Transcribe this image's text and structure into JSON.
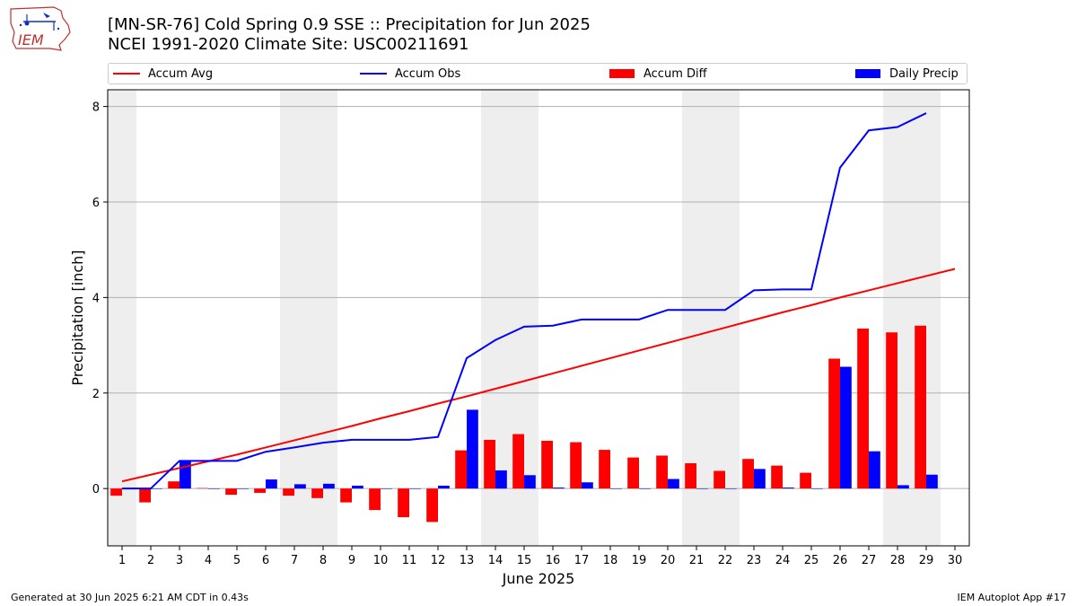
{
  "title_line1": "[MN-SR-76] Cold Spring 0.9 SSE :: Precipitation for Jun 2025",
  "title_line2": "NCEI 1991-2020 Climate Site: USC00211691",
  "logo_text": "IEM",
  "footer_left": "Generated at 30 Jun 2025 6:21 AM CDT in 0.43s",
  "footer_right": "IEM Autoplot App #17",
  "colors": {
    "avg": "#ff0000",
    "obs": "#0000ff",
    "diff": "#ff0000",
    "daily": "#0000ff",
    "weekend_band": "#eeeeee",
    "grid": "#b0b0b0"
  },
  "legend": [
    {
      "label": "Accum Avg",
      "kind": "line",
      "color": "#ff0000"
    },
    {
      "label": "Accum Obs",
      "kind": "line",
      "color": "#0000ff"
    },
    {
      "label": "Accum Diff",
      "kind": "bar",
      "color": "#ff0000"
    },
    {
      "label": "Daily Precip",
      "kind": "bar",
      "color": "#0000ff"
    }
  ],
  "chart_data": {
    "type": "bar",
    "xlabel": "June 2025",
    "ylabel": "Precipitation [inch]",
    "ylim": [
      -1.2,
      8.35
    ],
    "yticks": [
      0,
      2,
      4,
      6,
      8
    ],
    "x": [
      1,
      2,
      3,
      4,
      5,
      6,
      7,
      8,
      9,
      10,
      11,
      12,
      13,
      14,
      15,
      16,
      17,
      18,
      19,
      20,
      21,
      22,
      23,
      24,
      25,
      26,
      27,
      28,
      29,
      30
    ],
    "weekend_bands": [
      [
        1,
        1
      ],
      [
        7,
        8
      ],
      [
        14,
        15
      ],
      [
        21,
        22
      ],
      [
        28,
        29
      ]
    ],
    "grid": true,
    "series": [
      {
        "name": "Accum Avg",
        "kind": "line",
        "x": [
          1,
          2,
          3,
          4,
          5,
          6,
          7,
          8,
          9,
          10,
          11,
          12,
          13,
          14,
          15,
          16,
          17,
          18,
          19,
          20,
          21,
          22,
          23,
          24,
          25,
          26,
          27,
          28,
          29,
          30
        ],
        "values": [
          0.15,
          0.29,
          0.43,
          0.57,
          0.71,
          0.86,
          1.01,
          1.16,
          1.31,
          1.47,
          1.62,
          1.78,
          1.93,
          2.09,
          2.25,
          2.41,
          2.57,
          2.73,
          2.89,
          3.05,
          3.21,
          3.37,
          3.53,
          3.69,
          3.84,
          4.0,
          4.15,
          4.3,
          4.45,
          4.6
        ]
      },
      {
        "name": "Accum Obs",
        "kind": "line",
        "x": [
          1,
          2,
          3,
          4,
          5,
          6,
          7,
          8,
          9,
          10,
          11,
          12,
          13,
          14,
          15,
          16,
          17,
          18,
          19,
          20,
          21,
          22,
          23,
          24,
          25,
          26,
          27,
          28,
          29
        ],
        "values": [
          0.0,
          0.0,
          0.58,
          0.58,
          0.58,
          0.77,
          0.86,
          0.96,
          1.02,
          1.02,
          1.02,
          1.08,
          2.73,
          3.11,
          3.39,
          3.41,
          3.54,
          3.54,
          3.54,
          3.74,
          3.74,
          3.74,
          4.15,
          4.17,
          4.17,
          6.72,
          7.5,
          7.57,
          7.86
        ]
      },
      {
        "name": "Accum Diff",
        "kind": "bar",
        "x": [
          1,
          2,
          3,
          4,
          5,
          6,
          7,
          8,
          9,
          10,
          11,
          12,
          13,
          14,
          15,
          16,
          17,
          18,
          19,
          20,
          21,
          22,
          23,
          24,
          25,
          26,
          27,
          28,
          29
        ],
        "values": [
          -0.15,
          -0.29,
          0.15,
          0.01,
          -0.13,
          -0.09,
          -0.15,
          -0.2,
          -0.29,
          -0.45,
          -0.6,
          -0.7,
          0.8,
          1.02,
          1.14,
          1.0,
          0.97,
          0.81,
          0.65,
          0.69,
          0.53,
          0.37,
          0.62,
          0.48,
          0.33,
          2.72,
          3.35,
          3.27,
          3.41
        ]
      },
      {
        "name": "Daily Precip",
        "kind": "bar",
        "x": [
          1,
          2,
          3,
          4,
          5,
          6,
          7,
          8,
          9,
          10,
          11,
          12,
          13,
          14,
          15,
          16,
          17,
          18,
          19,
          20,
          21,
          22,
          23,
          24,
          25,
          26,
          27,
          28,
          29
        ],
        "values": [
          0.0,
          0.0,
          0.58,
          0.0,
          0.0,
          0.19,
          0.09,
          0.1,
          0.06,
          0.0,
          0.0,
          0.06,
          1.65,
          0.38,
          0.28,
          0.02,
          0.13,
          0.0,
          0.0,
          0.2,
          0.0,
          0.0,
          0.41,
          0.02,
          0.0,
          2.55,
          0.78,
          0.07,
          0.29
        ]
      }
    ]
  }
}
